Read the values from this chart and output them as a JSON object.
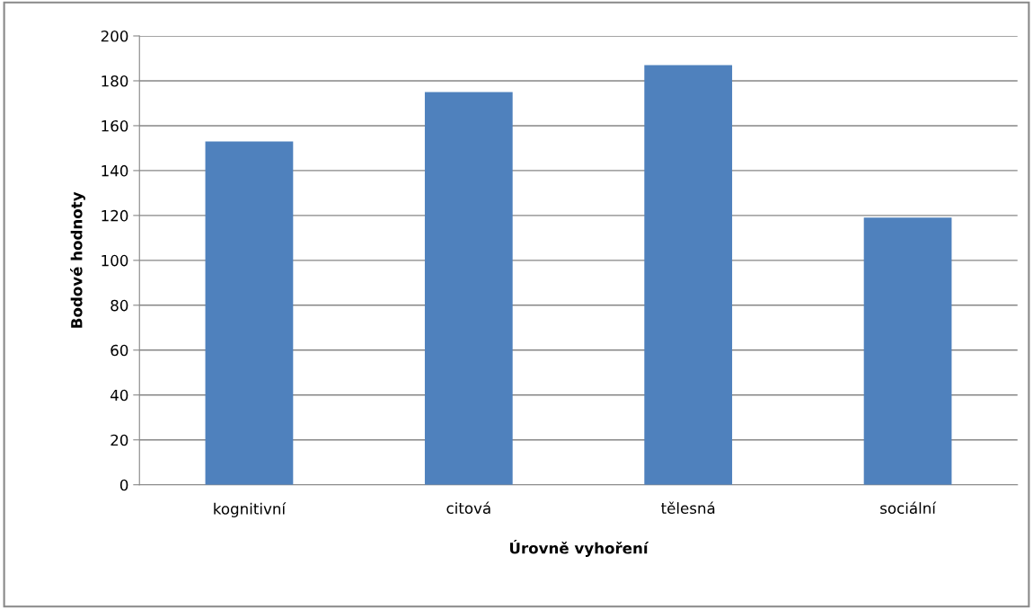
{
  "chart_data": {
    "type": "bar",
    "xlabel": "Úrovně vyhoření",
    "ylabel": "Bodové hodnoty",
    "categories": [
      "kognitivní",
      "citová",
      "tělesná",
      "sociální"
    ],
    "values": [
      153,
      175,
      187,
      119
    ],
    "color": "#4f81bd",
    "ylim": [
      0,
      200
    ],
    "yticks": [
      0,
      20,
      40,
      60,
      80,
      100,
      120,
      140,
      160,
      180,
      200
    ],
    "grid": "y",
    "legend": false
  }
}
